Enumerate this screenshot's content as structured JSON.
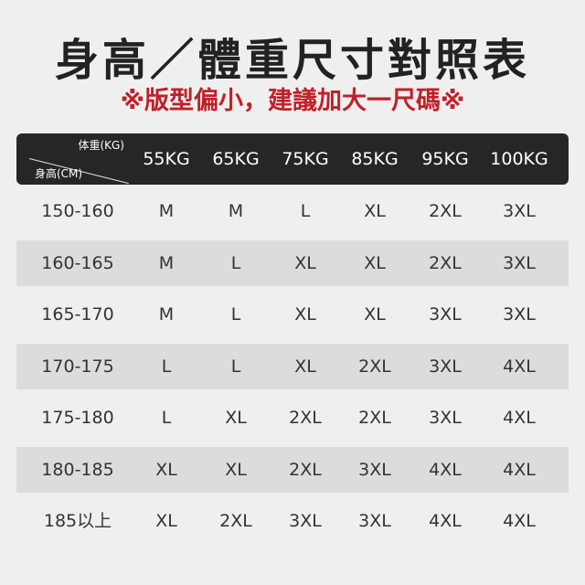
{
  "title": "身高／體重尺寸對照表",
  "subtitle": "※版型偏小，建議加大一尺碼※",
  "table": {
    "corner_weight": "体重(KG)",
    "corner_height": "身高(CM)",
    "columns": [
      "55KG",
      "65KG",
      "75KG",
      "85KG",
      "95KG",
      "100KG"
    ],
    "rows": [
      {
        "height": "150-160",
        "sizes": [
          "M",
          "M",
          "L",
          "XL",
          "2XL",
          "3XL"
        ]
      },
      {
        "height": "160-165",
        "sizes": [
          "M",
          "L",
          "XL",
          "XL",
          "2XL",
          "3XL"
        ]
      },
      {
        "height": "165-170",
        "sizes": [
          "M",
          "L",
          "XL",
          "XL",
          "3XL",
          "3XL"
        ]
      },
      {
        "height": "170-175",
        "sizes": [
          "L",
          "L",
          "XL",
          "2XL",
          "3XL",
          "4XL"
        ]
      },
      {
        "height": "175-180",
        "sizes": [
          "L",
          "XL",
          "2XL",
          "2XL",
          "3XL",
          "4XL"
        ]
      },
      {
        "height": "180-185",
        "sizes": [
          "XL",
          "XL",
          "2XL",
          "3XL",
          "4XL",
          "4XL"
        ]
      },
      {
        "height": "185以上",
        "sizes": [
          "XL",
          "2XL",
          "3XL",
          "3XL",
          "4XL",
          "4XL"
        ]
      }
    ]
  },
  "colors": {
    "header_bg": "#262626",
    "accent": "#c0202a",
    "alt_row": "#dcdcdc"
  }
}
